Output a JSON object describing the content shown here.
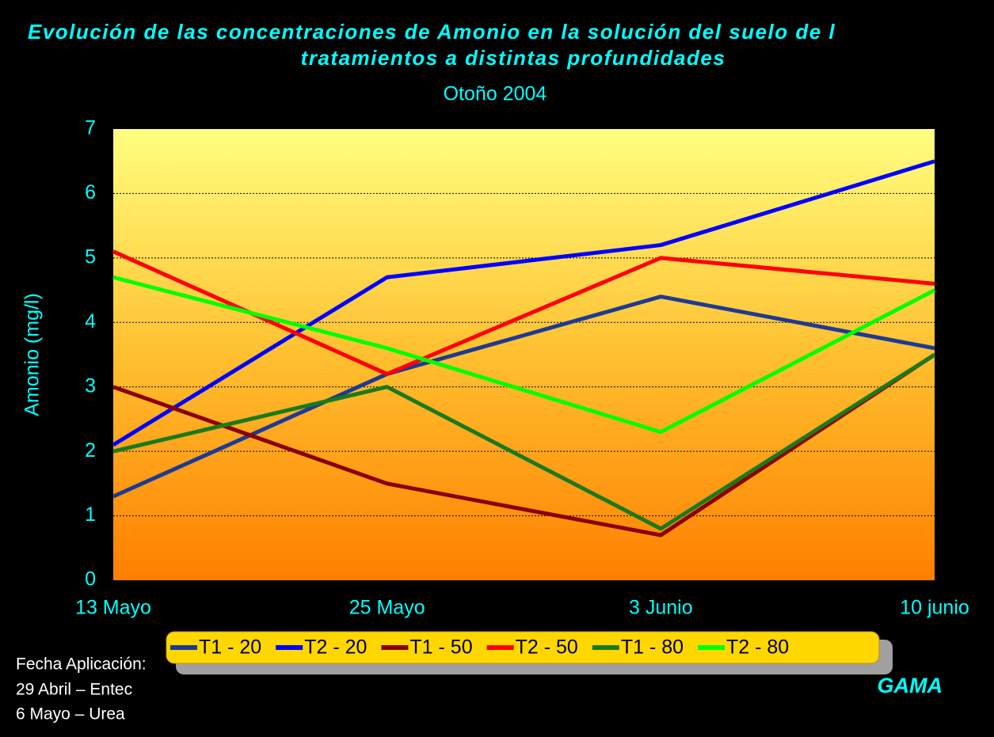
{
  "chart_data": {
    "type": "line",
    "title": [
      "Evolución de las concentraciones de Amonio en la solución del suelo de l",
      "tratamientos a distintas profundidades"
    ],
    "subtitle": "Otoño 2004",
    "y_label": "Amonio (mg/l)",
    "categories": [
      "13 Mayo",
      "25 Mayo",
      "3 Junio",
      "10 junio"
    ],
    "series": [
      {
        "name": "T1 - 20",
        "color": "#1f3a93",
        "values": [
          1.3,
          3.2,
          4.4,
          3.6
        ]
      },
      {
        "name": "T2 - 20",
        "color": "#0000ff",
        "values": [
          2.1,
          4.7,
          5.2,
          6.5
        ]
      },
      {
        "name": "T1 - 50",
        "color": "#8b0000",
        "values": [
          3.0,
          1.5,
          0.7,
          3.5
        ]
      },
      {
        "name": "T2 - 50",
        "color": "#ff0000",
        "values": [
          5.1,
          3.2,
          5.0,
          4.6
        ]
      },
      {
        "name": "T1 - 80",
        "color": "#1a7a1a",
        "values": [
          2.0,
          3.0,
          0.8,
          3.5
        ]
      },
      {
        "name": "T2 - 80",
        "color": "#00ff00",
        "values": [
          4.7,
          3.6,
          2.3,
          4.5
        ]
      }
    ],
    "ylim": [
      0,
      7
    ],
    "yticks": [
      0,
      1,
      2,
      3,
      4,
      5,
      6,
      7
    ],
    "grid": true,
    "legend": "bottom",
    "annotations": [
      "Fecha Aplicación:",
      "29 Abril – Entec",
      "6 Mayo – Urea",
      "GAMA"
    ]
  }
}
